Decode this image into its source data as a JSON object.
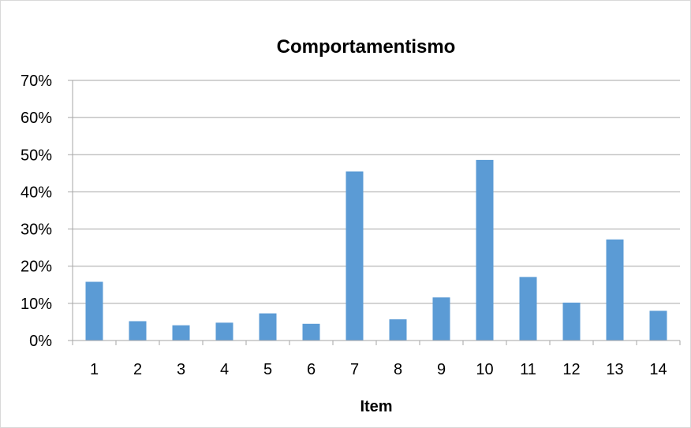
{
  "chart_data": {
    "type": "bar",
    "title": "Comportamentismo",
    "xlabel": "Item",
    "ylabel": "",
    "categories": [
      "1",
      "2",
      "3",
      "4",
      "5",
      "6",
      "7",
      "8",
      "9",
      "10",
      "11",
      "12",
      "13",
      "14"
    ],
    "values": [
      0.158,
      0.052,
      0.041,
      0.048,
      0.073,
      0.045,
      0.455,
      0.057,
      0.116,
      0.486,
      0.171,
      0.102,
      0.272,
      0.08
    ],
    "ylim": [
      0,
      0.7
    ],
    "yticks": [
      0,
      0.1,
      0.2,
      0.3,
      0.4,
      0.5,
      0.6,
      0.7
    ],
    "ytick_labels": [
      "0%",
      "10%",
      "20%",
      "30%",
      "40%",
      "50%",
      "60%",
      "70%"
    ],
    "bar_color": "#5b9bd5",
    "grid": true,
    "legend": "none"
  }
}
